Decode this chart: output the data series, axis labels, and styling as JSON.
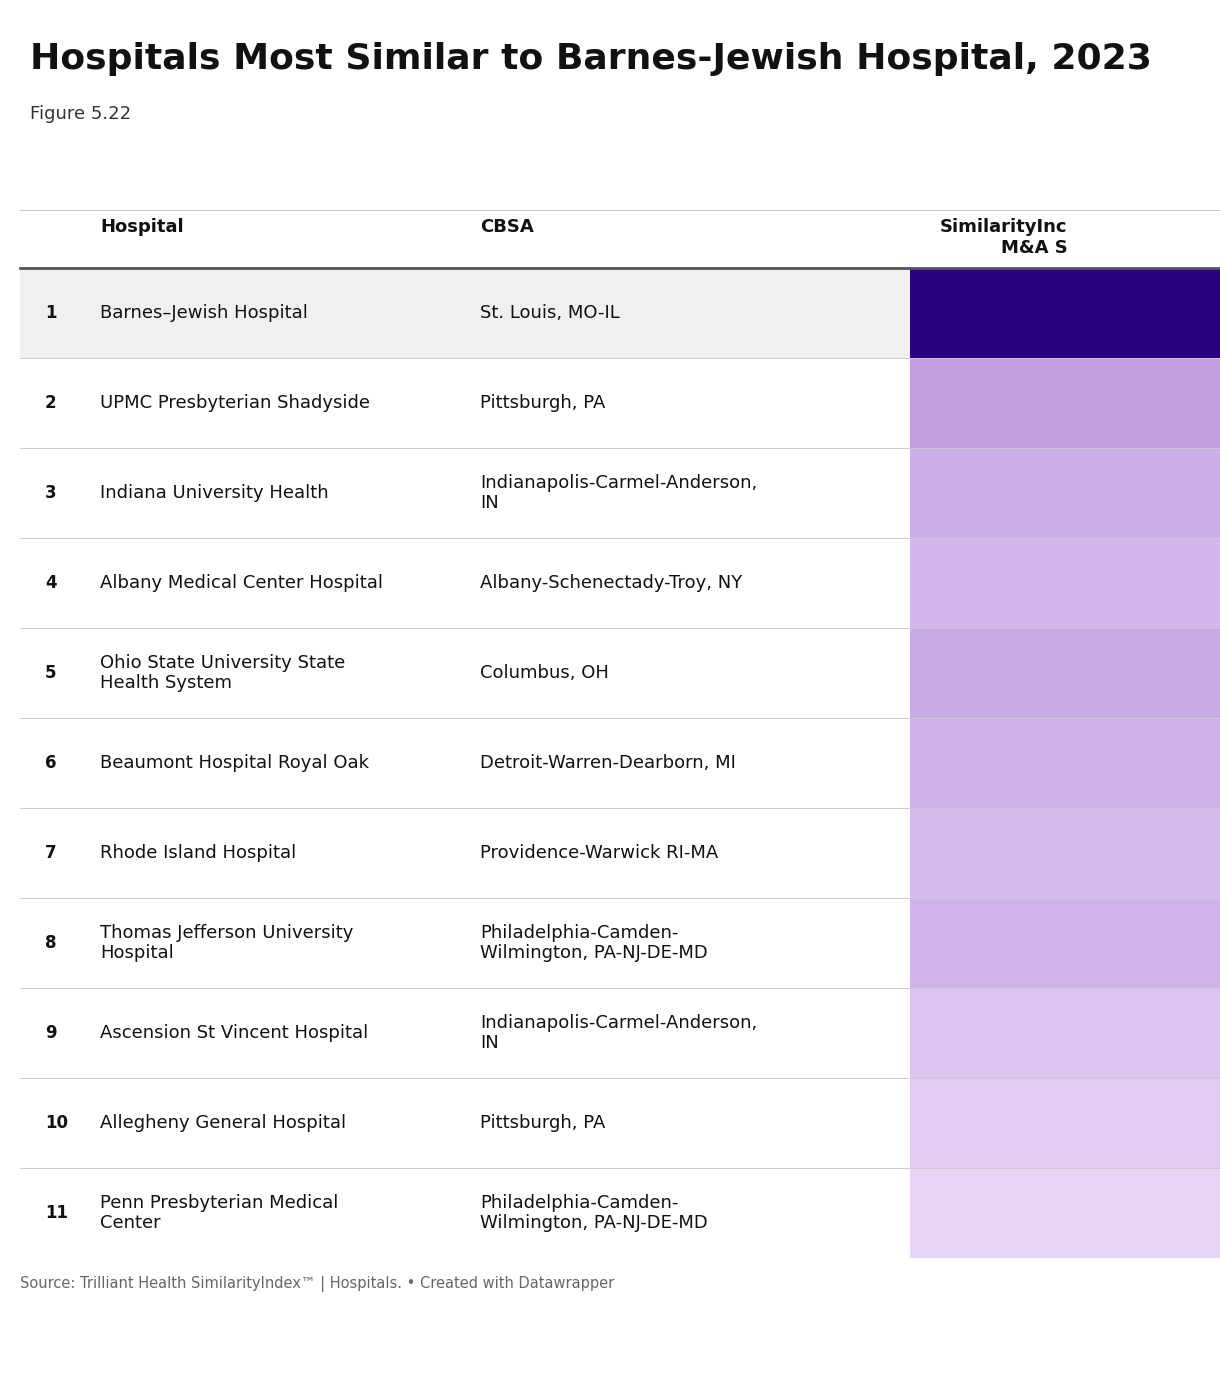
{
  "title": "Hospitals Most Similar to Barnes-Jewish Hospital, 2023",
  "subtitle": "Figure 5.22",
  "footer": "Source: Trilliant Health SimilarityIndex™ | Hospitals. • Created with Datawrapper",
  "col_header_hospital": "Hospital",
  "col_header_cbsa": "CBSA",
  "col_header_similarity": "SimilarityInc\nM&A S",
  "rows": [
    {
      "rank": "1",
      "hospital": "Barnes–Jewish Hospital",
      "cbsa": "St. Louis, MO-IL",
      "color": "#2a0080",
      "row_bg": "#f0f0f0"
    },
    {
      "rank": "2",
      "hospital": "UPMC Presbyterian Shadyside",
      "cbsa": "Pittsburgh, PA",
      "color": "#c49de0",
      "row_bg": "#ffffff"
    },
    {
      "rank": "3",
      "hospital": "Indiana University Health",
      "cbsa": "Indianapolis-Carmel-Anderson,\nIN",
      "color": "#ceaee8",
      "row_bg": "#ffffff"
    },
    {
      "rank": "4",
      "hospital": "Albany Medical Center Hospital",
      "cbsa": "Albany-Schenectady-Troy, NY",
      "color": "#d4b5ec",
      "row_bg": "#ffffff"
    },
    {
      "rank": "5",
      "hospital": "Ohio State University State\nHealth System",
      "cbsa": "Columbus, OH",
      "color": "#caaae5",
      "row_bg": "#ffffff"
    },
    {
      "rank": "6",
      "hospital": "Beaumont Hospital Royal Oak",
      "cbsa": "Detroit-Warren-Dearborn, MI",
      "color": "#d0b0e9",
      "row_bg": "#ffffff"
    },
    {
      "rank": "7",
      "hospital": "Rhode Island Hospital",
      "cbsa": "Providence-Warwick RI-MA",
      "color": "#d6baed",
      "row_bg": "#ffffff"
    },
    {
      "rank": "8",
      "hospital": "Thomas Jefferson University\nHospital",
      "cbsa": "Philadelphia-Camden-\nWilmington, PA-NJ-DE-MD",
      "color": "#d2b2ea",
      "row_bg": "#ffffff"
    },
    {
      "rank": "9",
      "hospital": "Ascension St Vincent Hospital",
      "cbsa": "Indianapolis-Carmel-Anderson,\nIN",
      "color": "#ddc5f2",
      "row_bg": "#ffffff"
    },
    {
      "rank": "10",
      "hospital": "Allegheny General Hospital",
      "cbsa": "Pittsburgh, PA",
      "color": "#e2ccf4",
      "row_bg": "#ffffff"
    },
    {
      "rank": "11",
      "hospital": "Penn Presbyterian Medical\nCenter",
      "cbsa": "Philadelphia-Camden-\nWilmington, PA-NJ-DE-MD",
      "color": "#e7d4f7",
      "row_bg": "#ffffff"
    }
  ],
  "background_color": "#ffffff",
  "title_fontsize": 26,
  "subtitle_fontsize": 13,
  "header_fontsize": 13,
  "cell_fontsize": 13,
  "rank_fontsize": 12,
  "footer_fontsize": 10.5
}
